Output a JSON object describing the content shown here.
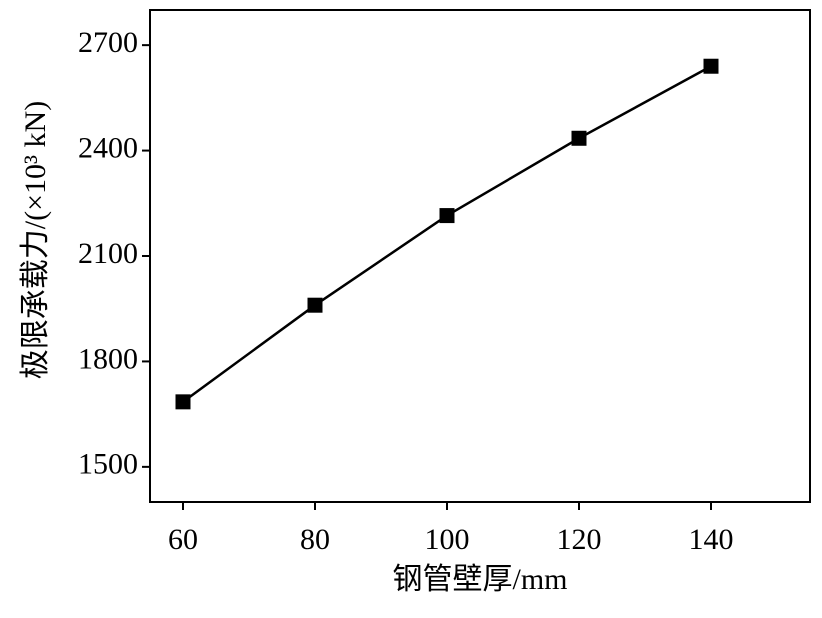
{
  "chart_data": {
    "type": "line",
    "x_label": "钢管壁厚/mm",
    "y_label": "极限承载力/(×10³ kN)",
    "x": [
      60,
      80,
      100,
      120,
      140
    ],
    "series": [
      {
        "color": "#000000",
        "values": [
          1685,
          1960,
          2215,
          2435,
          2640
        ]
      }
    ],
    "xlim": [
      55,
      155
    ],
    "xticks": [
      60,
      80,
      100,
      120,
      140
    ],
    "ylim": [
      1400,
      2800
    ],
    "yticks": [
      1500,
      1800,
      2100,
      2400,
      2700
    ],
    "grid": false,
    "marker": "square"
  }
}
